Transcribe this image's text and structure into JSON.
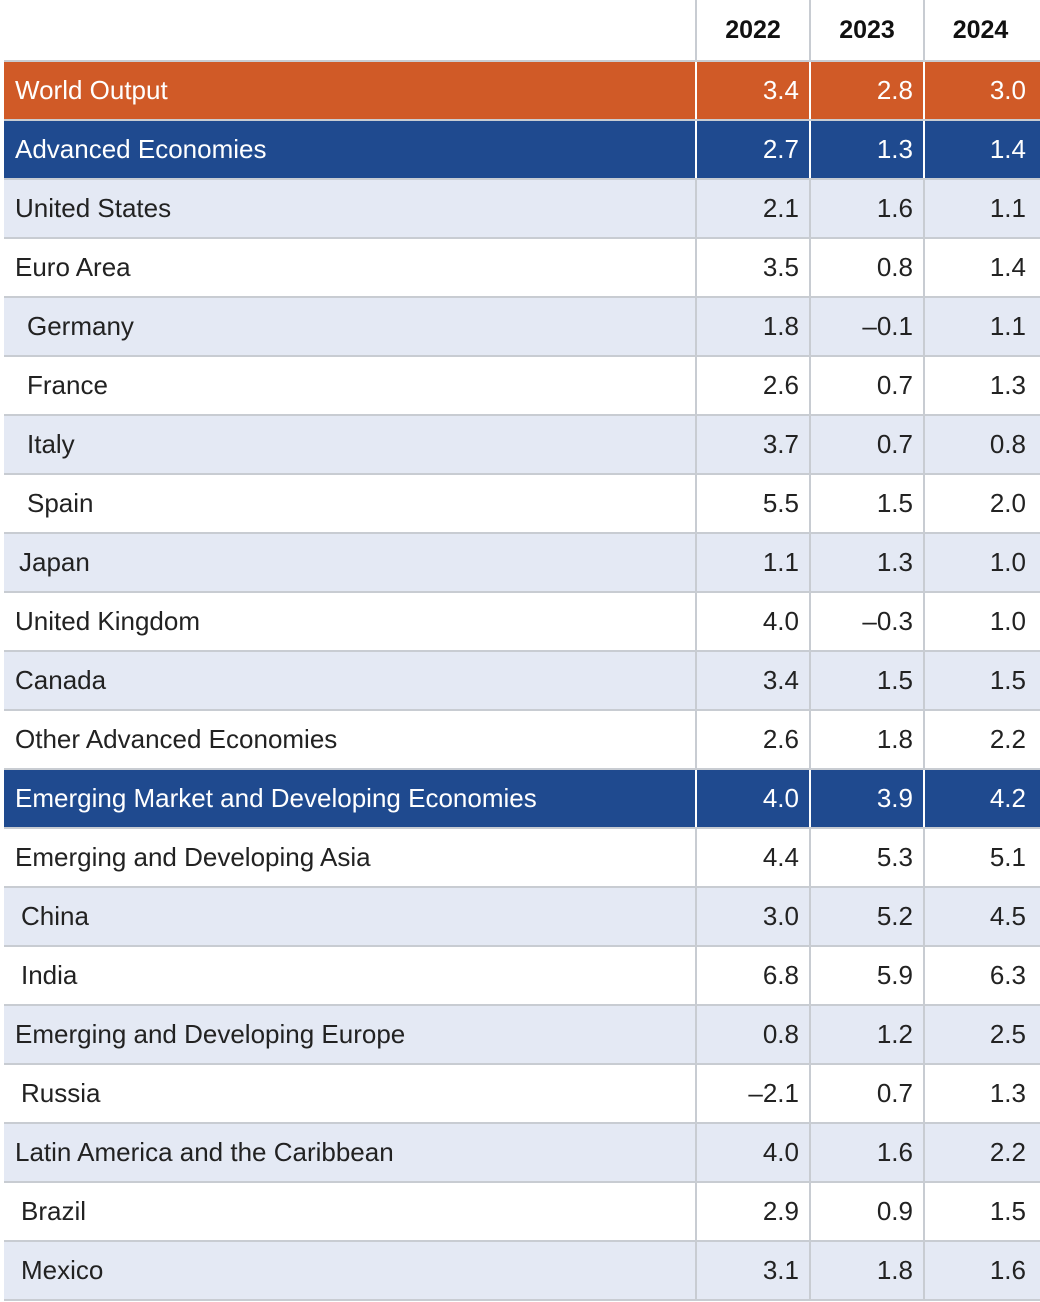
{
  "chart_data": {
    "type": "table",
    "columns": [
      "2022",
      "2023",
      "2024"
    ],
    "rows": [
      {
        "label": "World Output",
        "values": [
          "3.4",
          "2.8",
          "3.0"
        ]
      },
      {
        "label": "Advanced Economies",
        "values": [
          "2.7",
          "1.3",
          "1.4"
        ]
      },
      {
        "label": "United States",
        "values": [
          "2.1",
          "1.6",
          "1.1"
        ]
      },
      {
        "label": "Euro Area",
        "values": [
          "3.5",
          "0.8",
          "1.4"
        ]
      },
      {
        "label": "Germany",
        "values": [
          "1.8",
          "–0.1",
          "1.1"
        ]
      },
      {
        "label": "France",
        "values": [
          "2.6",
          "0.7",
          "1.3"
        ]
      },
      {
        "label": "Italy",
        "values": [
          "3.7",
          "0.7",
          "0.8"
        ]
      },
      {
        "label": "Spain",
        "values": [
          "5.5",
          "1.5",
          "2.0"
        ]
      },
      {
        "label": "Japan",
        "values": [
          "1.1",
          "1.3",
          "1.0"
        ]
      },
      {
        "label": "United Kingdom",
        "values": [
          "4.0",
          "–0.3",
          "1.0"
        ]
      },
      {
        "label": "Canada",
        "values": [
          "3.4",
          "1.5",
          "1.5"
        ]
      },
      {
        "label": "Other Advanced Economies",
        "values": [
          "2.6",
          "1.8",
          "2.2"
        ]
      },
      {
        "label": "Emerging Market and Developing Economies",
        "values": [
          "4.0",
          "3.9",
          "4.2"
        ]
      },
      {
        "label": "Emerging and Developing Asia",
        "values": [
          "4.4",
          "5.3",
          "5.1"
        ]
      },
      {
        "label": "China",
        "values": [
          "3.0",
          "5.2",
          "4.5"
        ]
      },
      {
        "label": "India",
        "values": [
          "6.8",
          "5.9",
          "6.3"
        ]
      },
      {
        "label": "Emerging and Developing Europe",
        "values": [
          "0.8",
          "1.2",
          "2.5"
        ]
      },
      {
        "label": "Russia",
        "values": [
          "–2.1",
          "0.7",
          "1.3"
        ]
      },
      {
        "label": "Latin America and the Caribbean",
        "values": [
          "4.0",
          "1.6",
          "2.2"
        ]
      },
      {
        "label": "Brazil",
        "values": [
          "2.9",
          "0.9",
          "1.5"
        ]
      },
      {
        "label": "Mexico",
        "values": [
          "3.1",
          "1.8",
          "1.6"
        ]
      }
    ]
  },
  "colors": {
    "highlight_world": "#d05a27",
    "highlight_group": "#1f4a8f",
    "row_shade": "#e4e9f4"
  }
}
